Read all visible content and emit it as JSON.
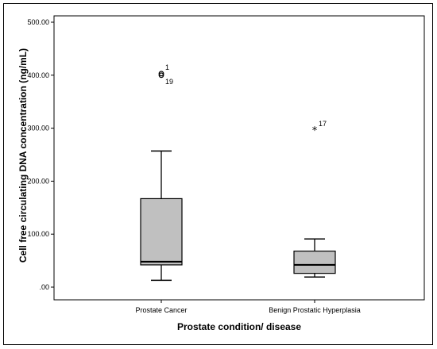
{
  "chart_data": {
    "type": "boxplot",
    "title": "",
    "xlabel": "Prostate condition/ disease",
    "ylabel": "Cell free circulating DNA concentration (ng/mL)",
    "ylim": [
      0,
      500
    ],
    "yticks": [
      0,
      100,
      200,
      300,
      400,
      500
    ],
    "ytick_labels": [
      ".00",
      "100.00",
      "200.00",
      "300.00",
      "400.00",
      "500.00"
    ],
    "grid": false,
    "colors": {
      "box_fill": "#c0c0c0",
      "stroke": "#000000"
    },
    "categories": [
      "Prostate Cancer",
      "Benign Prostatic Hyperplasia"
    ],
    "boxes": [
      {
        "category": "Prostate Cancer",
        "whisker_low": 13,
        "q1": 42,
        "median": 48,
        "q3": 167,
        "whisker_high": 257,
        "outliers": [
          {
            "value": 403,
            "label": "1",
            "marker": "circle"
          },
          {
            "value": 400,
            "label": "19",
            "marker": "circle"
          }
        ]
      },
      {
        "category": "Benign Prostatic Hyperplasia",
        "whisker_low": 19,
        "q1": 26,
        "median": 42,
        "q3": 68,
        "whisker_high": 91,
        "outliers": [
          {
            "value": 298,
            "label": "17",
            "marker": "star"
          }
        ]
      }
    ]
  }
}
